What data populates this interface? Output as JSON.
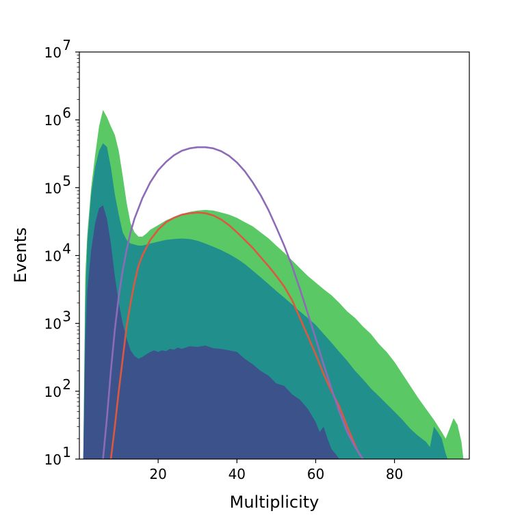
{
  "chart_data": {
    "type": "area",
    "title": "",
    "xlabel": "Multiplicity",
    "ylabel": "Events",
    "y_scale": "log",
    "xlim": [
      0,
      99
    ],
    "ylim": [
      10,
      10000000
    ],
    "grid": false,
    "legend": "none",
    "x_ticks": [
      20,
      40,
      60,
      80
    ],
    "y_ticks": [
      {
        "value": 10,
        "base": "10",
        "exp": "1"
      },
      {
        "value": 100,
        "base": "10",
        "exp": "2"
      },
      {
        "value": 1000,
        "base": "10",
        "exp": "3"
      },
      {
        "value": 10000,
        "base": "10",
        "exp": "4"
      },
      {
        "value": 100000,
        "base": "10",
        "exp": "5"
      },
      {
        "value": 1000000,
        "base": "10",
        "exp": "6"
      },
      {
        "value": 10000000,
        "base": "10",
        "exp": "7"
      }
    ],
    "stacked_areas": [
      {
        "color": "#5ac864",
        "points": [
          [
            1,
            10
          ],
          [
            1.5,
            5000
          ],
          [
            2,
            20000
          ],
          [
            3,
            100000
          ],
          [
            4,
            300000
          ],
          [
            5,
            800000
          ],
          [
            6,
            1400000
          ],
          [
            7,
            1100000
          ],
          [
            8,
            800000
          ],
          [
            9,
            600000
          ],
          [
            10,
            350000
          ],
          [
            11,
            150000
          ],
          [
            12,
            60000
          ],
          [
            13,
            30000
          ],
          [
            14,
            22000
          ],
          [
            15,
            19000
          ],
          [
            16,
            19000
          ],
          [
            17,
            21000
          ],
          [
            18,
            24000
          ],
          [
            20,
            28000
          ],
          [
            22,
            33000
          ],
          [
            24,
            37000
          ],
          [
            26,
            41000
          ],
          [
            28,
            44000
          ],
          [
            30,
            46000
          ],
          [
            32,
            47000
          ],
          [
            34,
            46000
          ],
          [
            36,
            43000
          ],
          [
            38,
            40000
          ],
          [
            40,
            36000
          ],
          [
            42,
            31000
          ],
          [
            44,
            27000
          ],
          [
            46,
            22000
          ],
          [
            48,
            18000
          ],
          [
            50,
            14000
          ],
          [
            52,
            11000
          ],
          [
            54,
            8500
          ],
          [
            56,
            6500
          ],
          [
            58,
            5000
          ],
          [
            60,
            4000
          ],
          [
            62,
            3200
          ],
          [
            64,
            2600
          ],
          [
            66,
            2000
          ],
          [
            68,
            1500
          ],
          [
            70,
            1200
          ],
          [
            72,
            900
          ],
          [
            74,
            700
          ],
          [
            76,
            500
          ],
          [
            78,
            380
          ],
          [
            80,
            270
          ],
          [
            82,
            180
          ],
          [
            84,
            120
          ],
          [
            86,
            80
          ],
          [
            88,
            55
          ],
          [
            90,
            38
          ],
          [
            92,
            25
          ],
          [
            93,
            20
          ],
          [
            94,
            28
          ],
          [
            95,
            40
          ],
          [
            96,
            32
          ],
          [
            97,
            18
          ],
          [
            97.5,
            10
          ]
        ]
      },
      {
        "color": "#21908d",
        "points": [
          [
            1,
            10
          ],
          [
            1.5,
            2000
          ],
          [
            2,
            15000
          ],
          [
            3,
            80000
          ],
          [
            4,
            200000
          ],
          [
            5,
            350000
          ],
          [
            6,
            450000
          ],
          [
            7,
            400000
          ],
          [
            8,
            200000
          ],
          [
            9,
            80000
          ],
          [
            10,
            40000
          ],
          [
            11,
            22000
          ],
          [
            12,
            17000
          ],
          [
            13,
            15000
          ],
          [
            14,
            14500
          ],
          [
            15,
            14000
          ],
          [
            16,
            14000
          ],
          [
            17,
            14500
          ],
          [
            18,
            15000
          ],
          [
            20,
            16000
          ],
          [
            22,
            17000
          ],
          [
            24,
            17500
          ],
          [
            26,
            17800
          ],
          [
            28,
            17500
          ],
          [
            30,
            16500
          ],
          [
            32,
            15000
          ],
          [
            34,
            13500
          ],
          [
            36,
            12000
          ],
          [
            38,
            10500
          ],
          [
            40,
            9000
          ],
          [
            42,
            7500
          ],
          [
            44,
            6000
          ],
          [
            46,
            4800
          ],
          [
            48,
            3800
          ],
          [
            50,
            3000
          ],
          [
            52,
            2400
          ],
          [
            54,
            1900
          ],
          [
            56,
            1500
          ],
          [
            58,
            1200
          ],
          [
            60,
            950
          ],
          [
            62,
            700
          ],
          [
            64,
            520
          ],
          [
            66,
            380
          ],
          [
            68,
            280
          ],
          [
            70,
            200
          ],
          [
            72,
            150
          ],
          [
            74,
            110
          ],
          [
            76,
            85
          ],
          [
            78,
            65
          ],
          [
            80,
            50
          ],
          [
            82,
            38
          ],
          [
            84,
            28
          ],
          [
            86,
            22
          ],
          [
            88,
            18
          ],
          [
            89,
            15
          ],
          [
            90,
            30
          ],
          [
            91,
            25
          ],
          [
            92,
            20
          ],
          [
            93,
            12
          ],
          [
            93.5,
            10
          ]
        ]
      },
      {
        "color": "#3b528b",
        "points": [
          [
            1,
            10
          ],
          [
            1.5,
            500
          ],
          [
            2,
            3000
          ],
          [
            3,
            12000
          ],
          [
            4,
            30000
          ],
          [
            5,
            50000
          ],
          [
            6,
            55000
          ],
          [
            7,
            35000
          ],
          [
            8,
            15000
          ],
          [
            9,
            5000
          ],
          [
            10,
            2000
          ],
          [
            11,
            1000
          ],
          [
            12,
            600
          ],
          [
            13,
            400
          ],
          [
            14,
            330
          ],
          [
            15,
            300
          ],
          [
            16,
            320
          ],
          [
            17,
            350
          ],
          [
            18,
            380
          ],
          [
            19,
            400
          ],
          [
            20,
            380
          ],
          [
            21,
            400
          ],
          [
            22,
            390
          ],
          [
            23,
            420
          ],
          [
            24,
            410
          ],
          [
            25,
            440
          ],
          [
            26,
            420
          ],
          [
            28,
            460
          ],
          [
            30,
            450
          ],
          [
            32,
            470
          ],
          [
            34,
            430
          ],
          [
            36,
            420
          ],
          [
            38,
            400
          ],
          [
            40,
            380
          ],
          [
            42,
            300
          ],
          [
            44,
            250
          ],
          [
            46,
            200
          ],
          [
            48,
            170
          ],
          [
            50,
            130
          ],
          [
            52,
            120
          ],
          [
            54,
            90
          ],
          [
            56,
            75
          ],
          [
            58,
            55
          ],
          [
            60,
            35
          ],
          [
            61,
            25
          ],
          [
            62,
            30
          ],
          [
            63,
            20
          ],
          [
            64,
            14
          ],
          [
            65,
            12
          ],
          [
            66,
            10
          ]
        ]
      }
    ],
    "series": [
      {
        "color": "#dd5840",
        "points": [
          [
            8,
            10
          ],
          [
            9,
            30
          ],
          [
            10,
            100
          ],
          [
            11,
            300
          ],
          [
            12,
            900
          ],
          [
            13,
            2000
          ],
          [
            14,
            4000
          ],
          [
            15,
            7000
          ],
          [
            16,
            10000
          ],
          [
            18,
            17000
          ],
          [
            20,
            24000
          ],
          [
            22,
            31000
          ],
          [
            24,
            36000
          ],
          [
            26,
            40000
          ],
          [
            28,
            42000
          ],
          [
            30,
            43000
          ],
          [
            32,
            42000
          ],
          [
            34,
            39000
          ],
          [
            36,
            34000
          ],
          [
            38,
            28000
          ],
          [
            40,
            22000
          ],
          [
            42,
            17000
          ],
          [
            44,
            13000
          ],
          [
            46,
            9500
          ],
          [
            48,
            7000
          ],
          [
            50,
            5000
          ],
          [
            52,
            3500
          ],
          [
            54,
            2200
          ],
          [
            56,
            1200
          ],
          [
            58,
            650
          ],
          [
            60,
            350
          ],
          [
            62,
            180
          ],
          [
            64,
            100
          ],
          [
            66,
            60
          ],
          [
            68,
            30
          ],
          [
            69,
            22
          ],
          [
            70,
            16
          ],
          [
            71,
            12
          ],
          [
            72,
            10
          ]
        ]
      },
      {
        "color": "#8d6bb8",
        "points": [
          [
            6,
            10
          ],
          [
            7,
            40
          ],
          [
            8,
            200
          ],
          [
            9,
            800
          ],
          [
            10,
            2500
          ],
          [
            11,
            6000
          ],
          [
            12,
            12000
          ],
          [
            13,
            22000
          ],
          [
            14,
            35000
          ],
          [
            16,
            70000
          ],
          [
            18,
            120000
          ],
          [
            20,
            180000
          ],
          [
            22,
            240000
          ],
          [
            24,
            300000
          ],
          [
            26,
            350000
          ],
          [
            28,
            380000
          ],
          [
            30,
            395000
          ],
          [
            32,
            395000
          ],
          [
            34,
            380000
          ],
          [
            36,
            345000
          ],
          [
            38,
            295000
          ],
          [
            40,
            235000
          ],
          [
            42,
            175000
          ],
          [
            44,
            120000
          ],
          [
            46,
            78000
          ],
          [
            48,
            47000
          ],
          [
            50,
            26000
          ],
          [
            52,
            14000
          ],
          [
            54,
            7000
          ],
          [
            56,
            3200
          ],
          [
            58,
            1400
          ],
          [
            60,
            600
          ],
          [
            62,
            250
          ],
          [
            64,
            110
          ],
          [
            66,
            50
          ],
          [
            68,
            25
          ],
          [
            70,
            15
          ],
          [
            72,
            10
          ]
        ]
      }
    ]
  }
}
